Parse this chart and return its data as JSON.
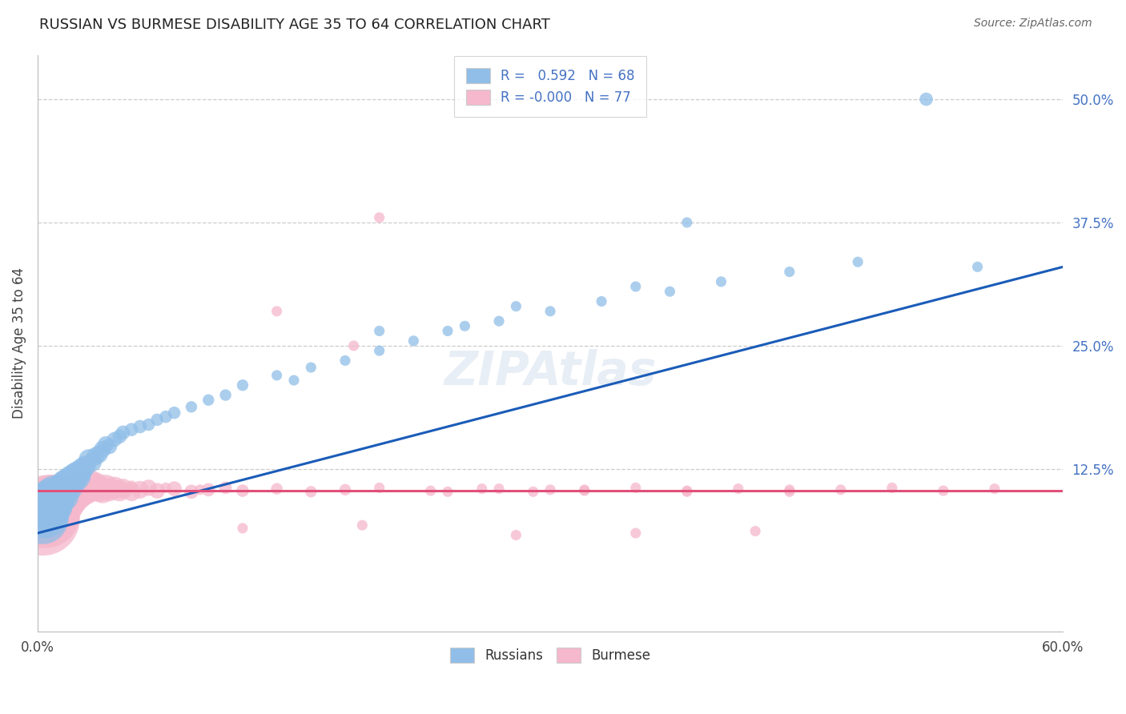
{
  "title": "RUSSIAN VS BURMESE DISABILITY AGE 35 TO 64 CORRELATION CHART",
  "source": "Source: ZipAtlas.com",
  "ylabel": "Disability Age 35 to 64",
  "xmin": 0.0,
  "xmax": 0.6,
  "ymin": -0.04,
  "ymax": 0.545,
  "yticks": [
    0.125,
    0.25,
    0.375,
    0.5
  ],
  "ytick_labels": [
    "12.5%",
    "25.0%",
    "37.5%",
    "50.0%"
  ],
  "xticks": [
    0.0,
    0.6
  ],
  "xtick_labels": [
    "0.0%",
    "60.0%"
  ],
  "legend_russian_R": "0.592",
  "legend_russian_N": "68",
  "legend_burmese_R": "-0.000",
  "legend_burmese_N": "77",
  "blue_color": "#90BEE8",
  "pink_color": "#F5B8CC",
  "blue_line_color": "#1A5CB8",
  "pink_line_color": "#E0507A",
  "russian_x": [
    0.003,
    0.004,
    0.005,
    0.006,
    0.007,
    0.008,
    0.009,
    0.01,
    0.01,
    0.011,
    0.012,
    0.013,
    0.014,
    0.015,
    0.015,
    0.016,
    0.017,
    0.018,
    0.019,
    0.02,
    0.021,
    0.022,
    0.023,
    0.024,
    0.025,
    0.026,
    0.028,
    0.03,
    0.032,
    0.034,
    0.036,
    0.038,
    0.04,
    0.042,
    0.045,
    0.048,
    0.05,
    0.055,
    0.06,
    0.065,
    0.07,
    0.075,
    0.08,
    0.09,
    0.1,
    0.11,
    0.12,
    0.14,
    0.16,
    0.18,
    0.2,
    0.22,
    0.24,
    0.27,
    0.3,
    0.33,
    0.37,
    0.4,
    0.44,
    0.48,
    0.52,
    0.55,
    0.28,
    0.2,
    0.35,
    0.15,
    0.25,
    0.38
  ],
  "russian_y": [
    0.075,
    0.08,
    0.085,
    0.09,
    0.085,
    0.095,
    0.088,
    0.092,
    0.1,
    0.097,
    0.095,
    0.1,
    0.102,
    0.105,
    0.098,
    0.108,
    0.11,
    0.107,
    0.112,
    0.115,
    0.113,
    0.118,
    0.12,
    0.117,
    0.122,
    0.125,
    0.128,
    0.135,
    0.132,
    0.138,
    0.14,
    0.145,
    0.15,
    0.148,
    0.155,
    0.158,
    0.162,
    0.165,
    0.168,
    0.17,
    0.175,
    0.178,
    0.182,
    0.188,
    0.195,
    0.2,
    0.21,
    0.22,
    0.228,
    0.235,
    0.245,
    0.255,
    0.265,
    0.275,
    0.285,
    0.295,
    0.305,
    0.315,
    0.325,
    0.335,
    0.5,
    0.33,
    0.29,
    0.265,
    0.31,
    0.215,
    0.27,
    0.375
  ],
  "russian_sizes": [
    120,
    110,
    100,
    90,
    80,
    75,
    70,
    65,
    60,
    55,
    52,
    50,
    48,
    46,
    44,
    42,
    40,
    38,
    36,
    34,
    32,
    30,
    28,
    26,
    24,
    22,
    20,
    18,
    16,
    15,
    14,
    13,
    12,
    11,
    10,
    9,
    9,
    8,
    8,
    7,
    7,
    7,
    7,
    6,
    6,
    6,
    6,
    5,
    5,
    5,
    5,
    5,
    5,
    5,
    5,
    5,
    5,
    5,
    5,
    5,
    8,
    5,
    5,
    5,
    5,
    5,
    5,
    5
  ],
  "burmese_x": [
    0.003,
    0.004,
    0.005,
    0.006,
    0.007,
    0.008,
    0.009,
    0.01,
    0.011,
    0.012,
    0.013,
    0.014,
    0.015,
    0.016,
    0.017,
    0.018,
    0.019,
    0.02,
    0.021,
    0.022,
    0.023,
    0.024,
    0.025,
    0.026,
    0.028,
    0.03,
    0.032,
    0.034,
    0.036,
    0.038,
    0.04,
    0.042,
    0.045,
    0.048,
    0.05,
    0.055,
    0.06,
    0.065,
    0.07,
    0.08,
    0.09,
    0.1,
    0.11,
    0.12,
    0.14,
    0.16,
    0.18,
    0.2,
    0.23,
    0.26,
    0.29,
    0.32,
    0.35,
    0.38,
    0.41,
    0.44,
    0.47,
    0.5,
    0.53,
    0.56,
    0.185,
    0.27,
    0.32,
    0.2,
    0.14,
    0.24,
    0.3,
    0.38,
    0.44,
    0.12,
    0.19,
    0.28,
    0.35,
    0.42,
    0.055,
    0.075,
    0.095
  ],
  "burmese_y": [
    0.075,
    0.08,
    0.085,
    0.078,
    0.082,
    0.09,
    0.086,
    0.092,
    0.088,
    0.094,
    0.09,
    0.096,
    0.092,
    0.098,
    0.095,
    0.1,
    0.097,
    0.102,
    0.099,
    0.104,
    0.1,
    0.106,
    0.102,
    0.108,
    0.104,
    0.11,
    0.106,
    0.108,
    0.105,
    0.103,
    0.107,
    0.104,
    0.106,
    0.103,
    0.105,
    0.102,
    0.104,
    0.106,
    0.103,
    0.105,
    0.102,
    0.104,
    0.106,
    0.103,
    0.105,
    0.102,
    0.104,
    0.106,
    0.103,
    0.105,
    0.102,
    0.104,
    0.106,
    0.103,
    0.105,
    0.102,
    0.104,
    0.106,
    0.103,
    0.105,
    0.25,
    0.105,
    0.103,
    0.38,
    0.285,
    0.102,
    0.104,
    0.102,
    0.104,
    0.065,
    0.068,
    0.058,
    0.06,
    0.062,
    0.108,
    0.106,
    0.104
  ],
  "burmese_sizes": [
    250,
    220,
    200,
    180,
    160,
    150,
    140,
    130,
    120,
    110,
    100,
    90,
    85,
    80,
    75,
    70,
    65,
    60,
    55,
    50,
    48,
    46,
    44,
    42,
    40,
    38,
    35,
    32,
    30,
    28,
    26,
    24,
    22,
    20,
    18,
    16,
    14,
    12,
    11,
    10,
    9,
    8,
    7,
    7,
    6,
    6,
    6,
    5,
    5,
    5,
    5,
    5,
    5,
    5,
    5,
    5,
    5,
    5,
    5,
    5,
    5,
    5,
    5,
    5,
    5,
    5,
    5,
    5,
    5,
    5,
    5,
    5,
    5,
    5,
    5,
    5,
    5
  ]
}
